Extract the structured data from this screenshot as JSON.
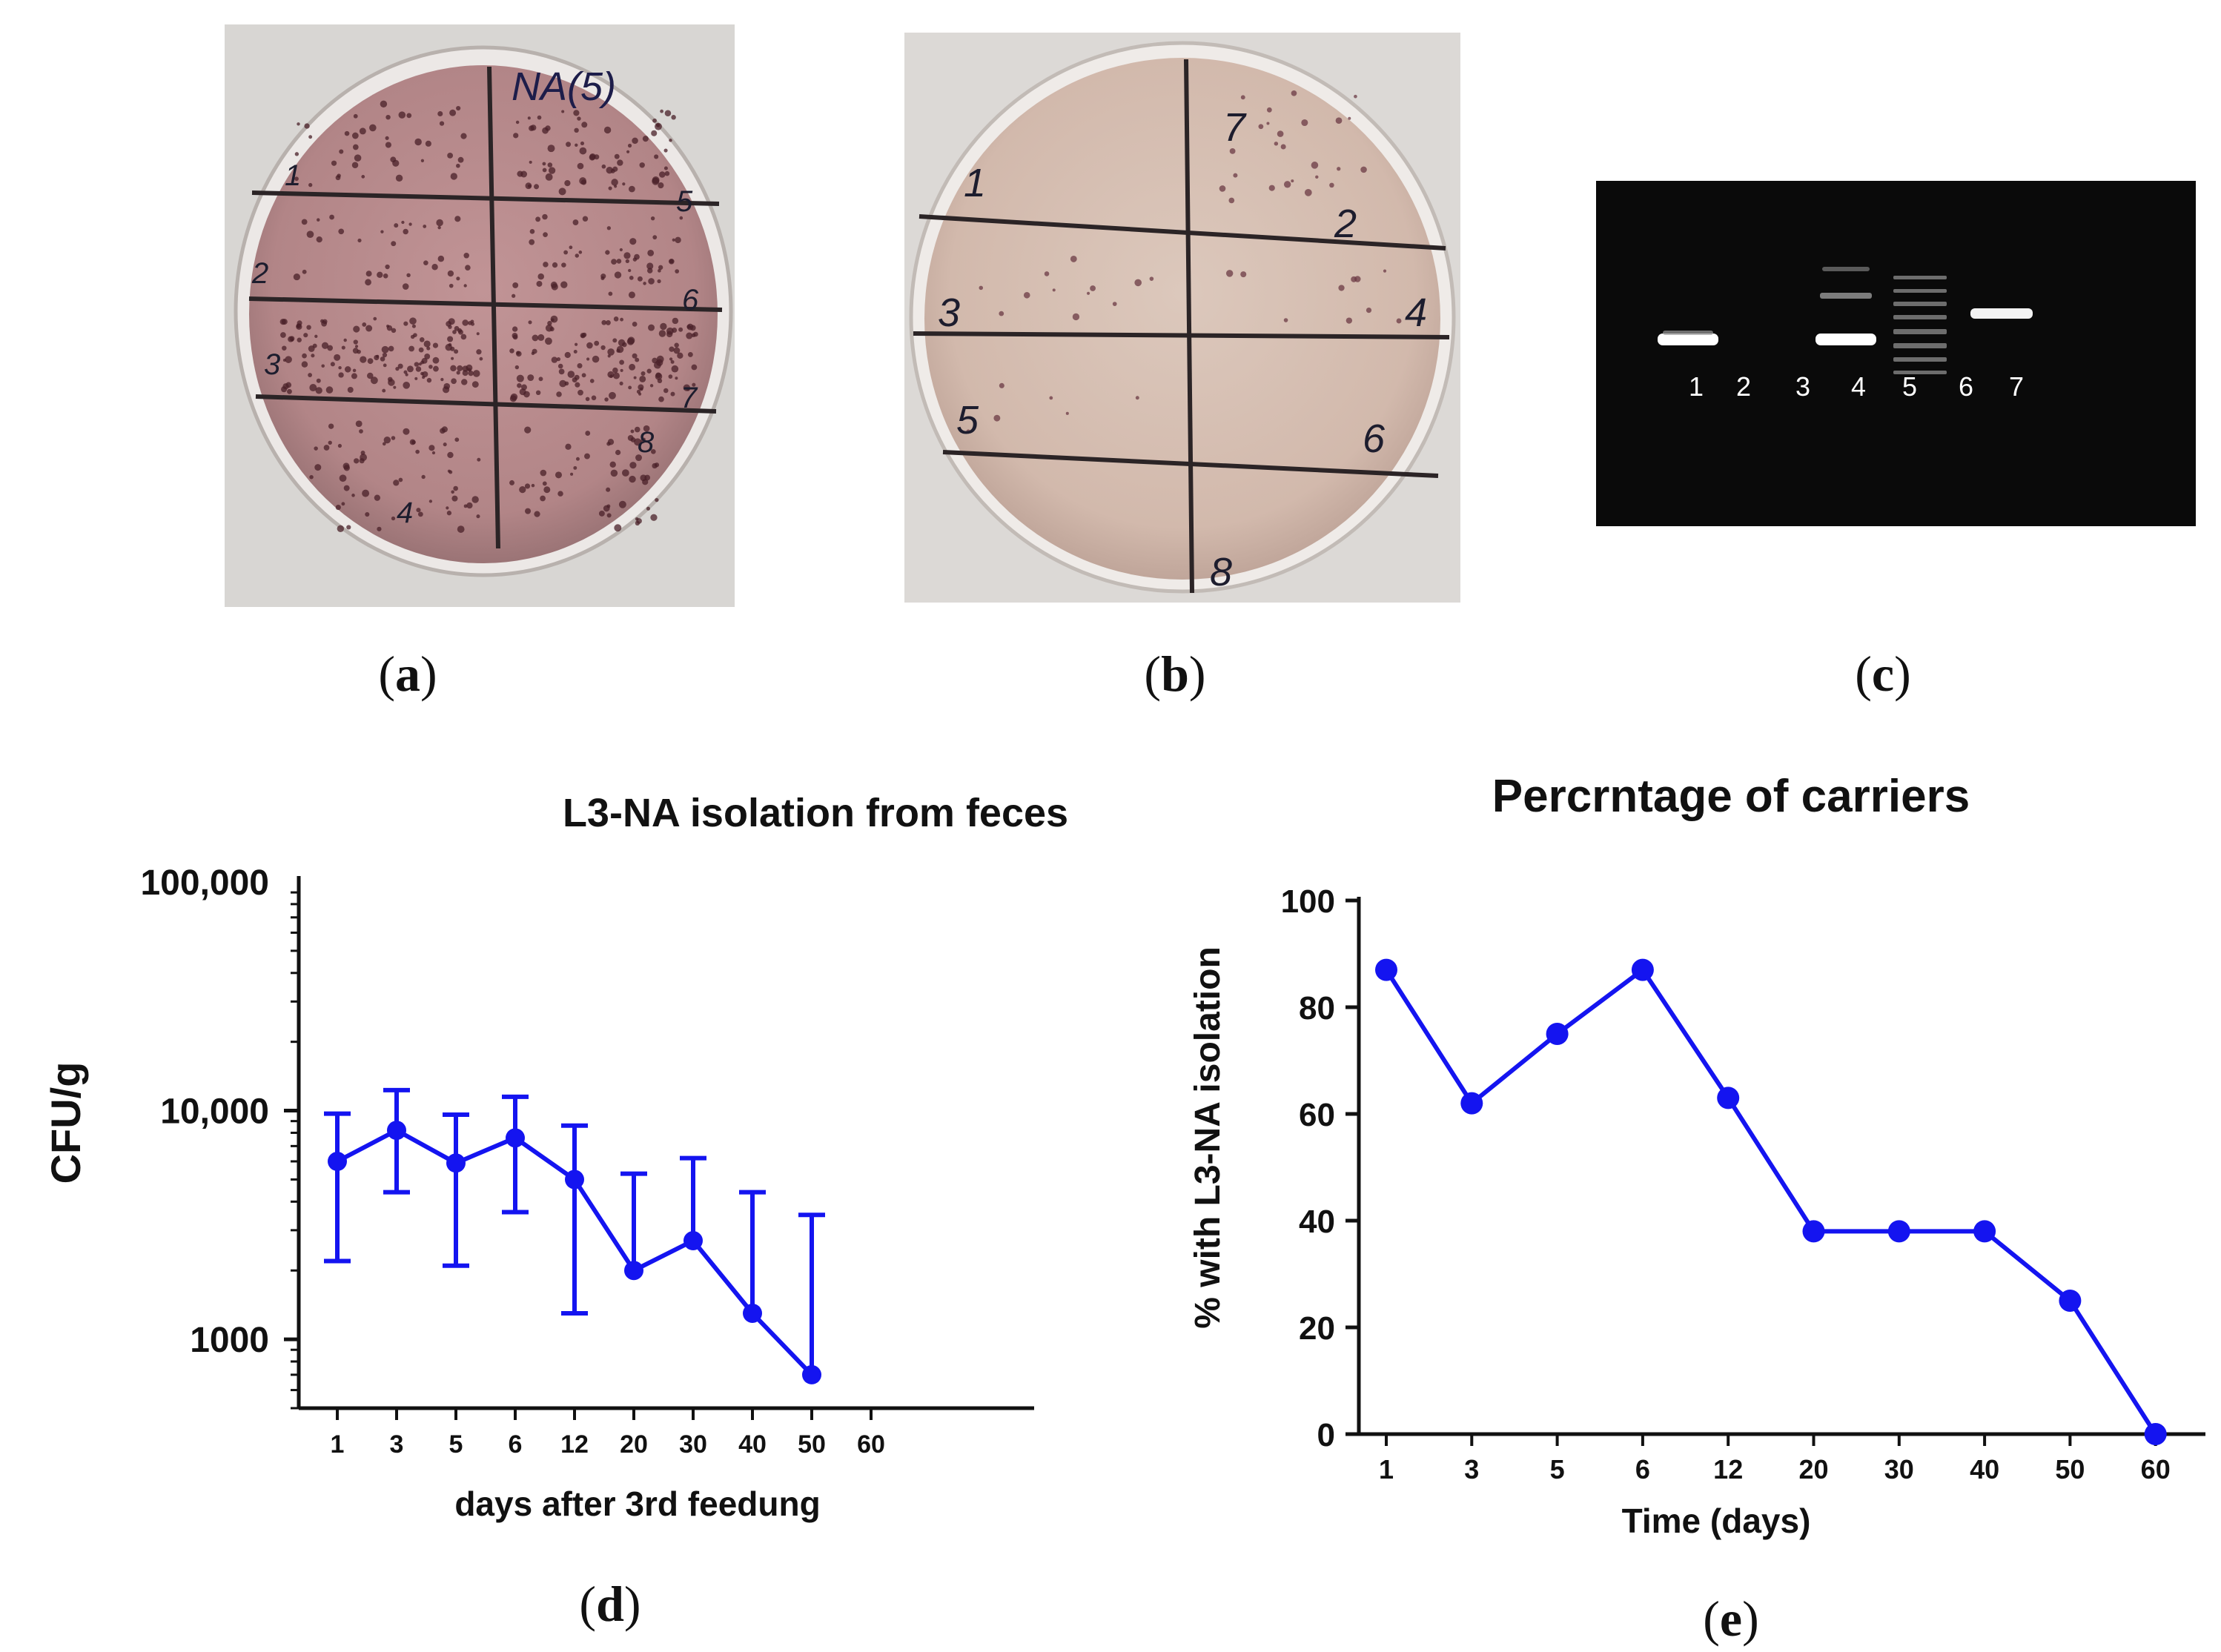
{
  "figure": {
    "panel_labels": [
      "a",
      "b",
      "c",
      "d",
      "e"
    ]
  },
  "plates": {
    "plate_a": {
      "handwritten_title": "NA(5)",
      "sector_labels": [
        "1",
        "2",
        "3",
        "4",
        "5",
        "6",
        "7",
        "8"
      ]
    },
    "plate_b": {
      "sector_labels": [
        "1",
        "2",
        "3",
        "4",
        "5",
        "6",
        "7",
        "8"
      ]
    }
  },
  "gel": {
    "lane_labels": [
      "1",
      "2",
      "3",
      "4",
      "5",
      "6",
      "7"
    ]
  },
  "colors": {
    "series": "#1414f0",
    "axis": "#111111",
    "gel_background": "#0a0a0a",
    "plate_a_agar": "#b98d8f",
    "plate_b_agar": "#d6bfb2"
  },
  "chart_data": [
    {
      "type": "line",
      "title": "L3-NA isolation from feces",
      "xlabel": "days after 3rd feedung",
      "ylabel": "CFU/g",
      "yscale": "log",
      "ylim": [
        500,
        100000
      ],
      "y_tick_labels": [
        "100,000",
        "10,000",
        "1000"
      ],
      "y_tick_values": [
        100000,
        10000,
        1000
      ],
      "categories": [
        "1",
        "3",
        "5",
        "6",
        "12",
        "20",
        "30",
        "40",
        "50",
        "60"
      ],
      "series": [
        {
          "name": "L3-NA",
          "values": [
            6000,
            8200,
            5900,
            7600,
            5000,
            2000,
            2700,
            1300,
            700,
            null
          ],
          "error_upper": [
            9700,
            12300,
            9600,
            11500,
            8600,
            5300,
            6200,
            4400,
            3500,
            null
          ],
          "error_lower": [
            2200,
            4400,
            2100,
            3600,
            1300,
            null,
            null,
            null,
            null,
            null
          ]
        }
      ]
    },
    {
      "type": "line",
      "title": "Percrntage of carriers",
      "xlabel": "Time (days)",
      "ylabel": "% with L3-NA isolation",
      "ylim": [
        0,
        100
      ],
      "y_tick_labels": [
        "0",
        "20",
        "40",
        "60",
        "80",
        "100"
      ],
      "y_tick_values": [
        0,
        20,
        40,
        60,
        80,
        100
      ],
      "categories": [
        "1",
        "3",
        "5",
        "6",
        "12",
        "20",
        "30",
        "40",
        "50",
        "60"
      ],
      "series": [
        {
          "name": "carriers",
          "values": [
            87,
            62,
            75,
            87,
            63,
            38,
            38,
            38,
            25,
            0
          ]
        }
      ]
    }
  ]
}
